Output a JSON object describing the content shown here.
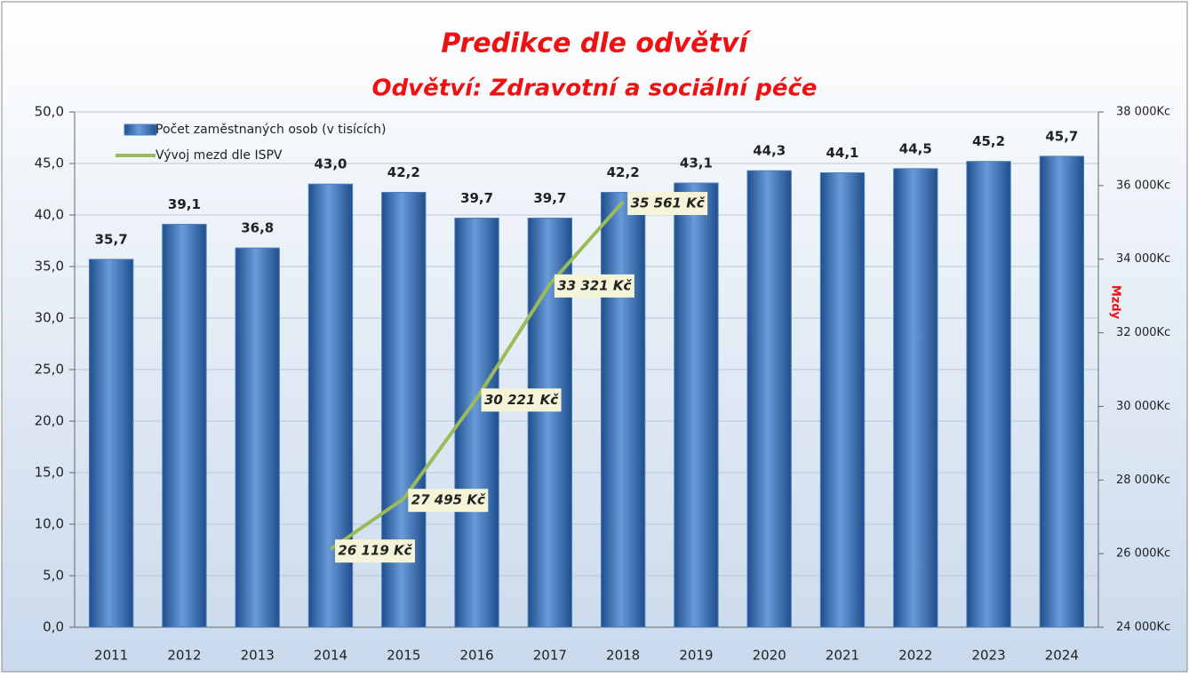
{
  "chart_data": {
    "type": "bar",
    "title": "Predikce dle odvětví",
    "subtitle": "Odvětví: Zdravotní a sociální péče",
    "y2_label": "Mzdy",
    "categories": [
      "2011",
      "2012",
      "2013",
      "2014",
      "2015",
      "2016",
      "2017",
      "2018",
      "2019",
      "2020",
      "2021",
      "2022",
      "2023",
      "2024"
    ],
    "series": [
      {
        "name": "Počet zaměstnaných osob (v tisících)",
        "type": "bar",
        "color": "#4f81bd",
        "values": [
          35.7,
          39.1,
          36.8,
          43.0,
          42.2,
          39.7,
          39.7,
          42.2,
          43.1,
          44.3,
          44.1,
          44.5,
          45.2,
          45.7
        ],
        "value_labels": [
          "35,7",
          "39,1",
          "36,8",
          "43,0",
          "42,2",
          "39,7",
          "39,7",
          "42,2",
          "43,1",
          "44,3",
          "44,1",
          "44,5",
          "45,2",
          "45,7"
        ]
      },
      {
        "name": "Vývoj mezd dle ISPV",
        "type": "line",
        "color": "#9bbb59",
        "axis": "y2",
        "values": [
          null,
          null,
          null,
          26119,
          27495,
          30221,
          33321,
          35561,
          null,
          null,
          null,
          null,
          null,
          null
        ],
        "value_labels": [
          null,
          null,
          null,
          "26 119 Kč",
          "27 495 Kč",
          "30 221 Kč",
          "33 321 Kč",
          "35 561 Kč",
          null,
          null,
          null,
          null,
          null,
          null
        ]
      }
    ],
    "ylim": [
      0,
      50
    ],
    "yticks": [
      {
        "value": 0,
        "label": "0,0"
      },
      {
        "value": 5,
        "label": "5,0"
      },
      {
        "value": 10,
        "label": "10,0"
      },
      {
        "value": 15,
        "label": "15,0"
      },
      {
        "value": 20,
        "label": "20,0"
      },
      {
        "value": 25,
        "label": "25,0"
      },
      {
        "value": 30,
        "label": "30,0"
      },
      {
        "value": 35,
        "label": "35,0"
      },
      {
        "value": 40,
        "label": "40,0"
      },
      {
        "value": 45,
        "label": "45,0"
      },
      {
        "value": 50,
        "label": "50,0"
      }
    ],
    "y2lim": [
      24000,
      38000
    ],
    "y2ticks": [
      {
        "value": 24000,
        "label": "24 000Kc"
      },
      {
        "value": 26000,
        "label": "26 000Kc"
      },
      {
        "value": 28000,
        "label": "28 000Kc"
      },
      {
        "value": 30000,
        "label": "30 000Kc"
      },
      {
        "value": 32000,
        "label": "32 000Kc"
      },
      {
        "value": 34000,
        "label": "34 000Kc"
      },
      {
        "value": 36000,
        "label": "36 000Kc"
      },
      {
        "value": 38000,
        "label": "38 000Kc"
      }
    ],
    "grid": true,
    "legend": "top-left"
  }
}
